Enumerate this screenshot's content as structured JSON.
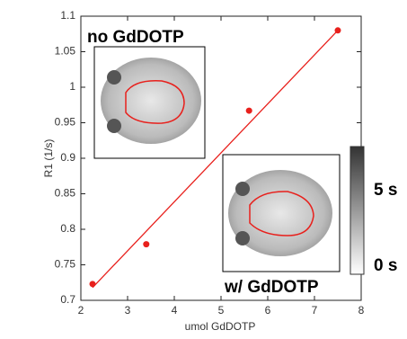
{
  "chart_data": {
    "type": "scatter",
    "x_label": "umol GdDOTP",
    "y_label": "R1 (1/s)",
    "xlim": [
      2,
      8
    ],
    "xticks": [
      2,
      3,
      4,
      5,
      6,
      7,
      8
    ],
    "ylim": [
      0.7,
      1.1
    ],
    "yticks": [
      0.7,
      0.75,
      0.8,
      0.85,
      0.9,
      0.95,
      1,
      1.05,
      1.1
    ],
    "series": [
      {
        "color": "#e8201c",
        "x": [
          2.25,
          3.4,
          5.6,
          7.5
        ],
        "values": [
          0.723,
          0.779,
          0.967,
          1.08
        ]
      }
    ],
    "fit_line": {
      "color": "#e8201c",
      "x": [
        2.25,
        7.5
      ],
      "values": [
        0.718,
        1.08
      ]
    },
    "annotations": [
      "no GdDOTP",
      "w/ GdDOTP"
    ],
    "colorbar": {
      "labels": [
        "5 s",
        "0 s"
      ]
    }
  }
}
